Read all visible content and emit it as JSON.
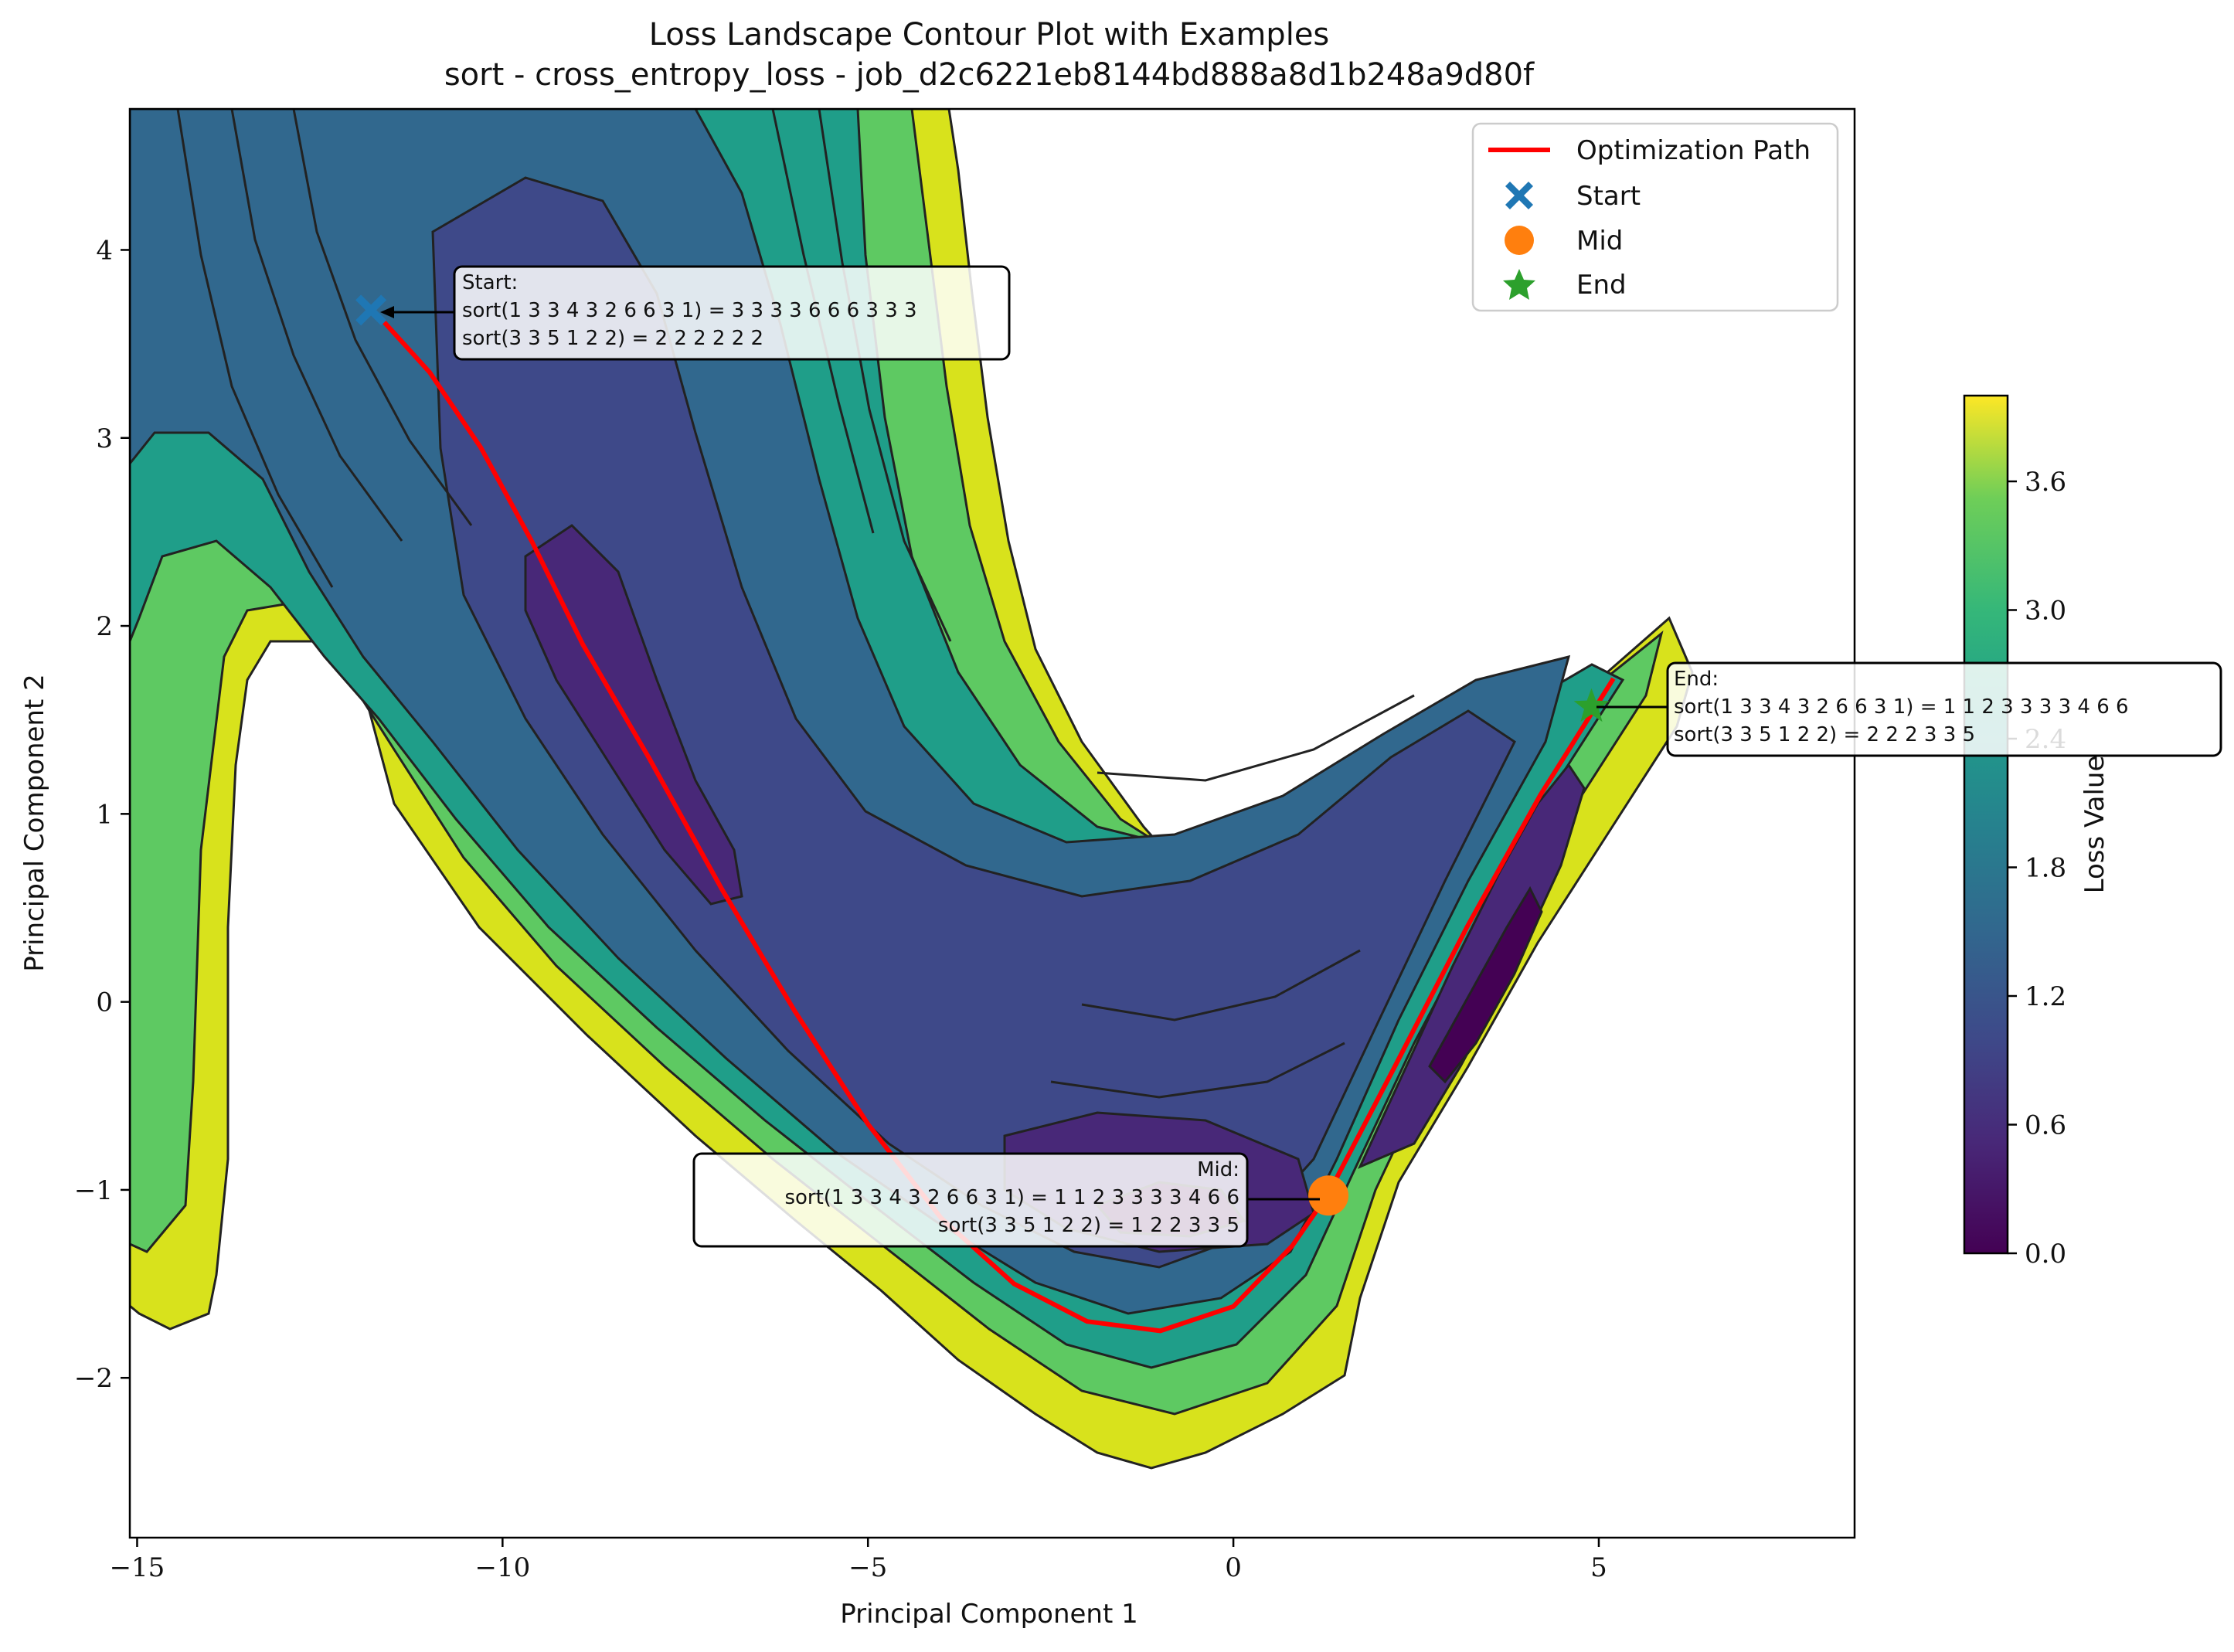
{
  "chart_data": {
    "type": "contour",
    "title": "Loss Landscape Contour Plot with Examples",
    "subtitle": "sort - cross_entropy_loss - job_d2c6221eb8144bd888a8d1b248a9d80f",
    "xlabel": "Principal Component 1",
    "ylabel": "Principal Component 2",
    "xlim": [
      -15.1,
      8.5
    ],
    "ylim": [
      -2.85,
      4.75
    ],
    "xticks": [
      -15,
      -10,
      -5,
      0,
      5
    ],
    "xtick_labels": [
      "−15",
      "−10",
      "−5",
      "0",
      "5"
    ],
    "yticks": [
      -2,
      -1,
      0,
      1,
      2,
      3,
      4
    ],
    "ytick_labels": [
      "−2",
      "−1",
      "0",
      "1",
      "2",
      "3",
      "4"
    ],
    "colorbar": {
      "label": "Loss Value",
      "range": [
        0.0,
        4.0
      ],
      "ticks": [
        0.0,
        0.6,
        1.2,
        1.8,
        2.4,
        3.0,
        3.6
      ],
      "tick_labels": [
        "0.0",
        "0.6",
        "1.2",
        "1.8",
        "2.4",
        "3.0",
        "3.6"
      ],
      "levels": 20,
      "colormap": "viridis"
    },
    "legend": {
      "position": "top-right",
      "entries": [
        {
          "label": "Optimization Path",
          "color": "#ff0000",
          "marker": "line"
        },
        {
          "label": "Start",
          "color": "#1f77b4",
          "marker": "X"
        },
        {
          "label": "Mid",
          "color": "#ff7f0e",
          "marker": "circle"
        },
        {
          "label": "End",
          "color": "#2ca02c",
          "marker": "star"
        }
      ]
    },
    "path": [
      [
        -11.7,
        3.65
      ],
      [
        -11.0,
        3.35
      ],
      [
        -10.3,
        2.95
      ],
      [
        -9.6,
        2.45
      ],
      [
        -8.9,
        1.9
      ],
      [
        -8.0,
        1.3
      ],
      [
        -7.0,
        0.6
      ],
      [
        -6.0,
        -0.05
      ],
      [
        -5.0,
        -0.65
      ],
      [
        -4.0,
        -1.15
      ],
      [
        -3.0,
        -1.5
      ],
      [
        -2.0,
        -1.7
      ],
      [
        -1.0,
        -1.75
      ],
      [
        0.0,
        -1.62
      ],
      [
        0.8,
        -1.3
      ],
      [
        1.3,
        -1.02
      ],
      [
        2.2,
        -0.35
      ],
      [
        3.2,
        0.4
      ],
      [
        4.2,
        1.1
      ],
      [
        5.2,
        1.72
      ]
    ],
    "points": {
      "start": {
        "x": -11.8,
        "y": 3.68
      },
      "mid": {
        "x": 1.3,
        "y": -1.03
      },
      "end": {
        "x": 4.9,
        "y": 1.57
      }
    },
    "annotations": {
      "start": {
        "header": "Start:",
        "line1": "sort(1 3 3 4 3 2 6 6 3 1) = 3 3 3 3 6 6 6 3 3 3",
        "line2": "sort(3 3 5 1 2 2) = 2 2 2 2 2 2"
      },
      "mid": {
        "header": "Mid:",
        "line1": "sort(1 3 3 4 3 2 6 6 3 1) = 1 1 2 3 3 3 3 4 6 6",
        "line2": "sort(3 3 5 1 2 2) = 1 2 2 3 3 5"
      },
      "end": {
        "header": "End:",
        "line1": "sort(1 3 3 4 3 2 6 6 3 1) = 1 1 2 3 3 3 3 4 6 6",
        "line2": "sort(3 3 5 1 2 2) = 2 2 2 3 3 5"
      }
    },
    "colors": {
      "path": "#ff0000",
      "start": "#1f77b4",
      "mid": "#ff7f0e",
      "end": "#2ca02c"
    }
  }
}
